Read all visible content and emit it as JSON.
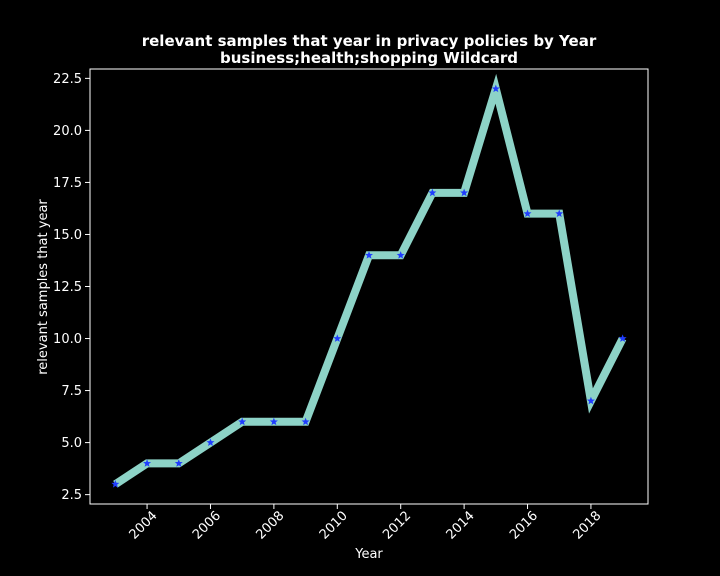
{
  "chart_data": {
    "type": "line",
    "title": "relevant samples that year in privacy policies by Year",
    "subtitle": "business;health;shopping Wildcard",
    "xlabel": "Year",
    "ylabel": "relevant samples that year",
    "x": [
      2003,
      2004,
      2005,
      2006,
      2007,
      2008,
      2009,
      2010,
      2011,
      2012,
      2013,
      2014,
      2015,
      2016,
      2017,
      2018,
      2019
    ],
    "series": [
      {
        "values": [
          3,
          4,
          4,
          5,
          6,
          6,
          6,
          10,
          14,
          14,
          17,
          17,
          22,
          16,
          16,
          7,
          10
        ]
      }
    ],
    "xlim": [
      2002.2,
      2019.8
    ],
    "ylim": [
      2.05,
      22.95
    ],
    "xticks": [
      2004,
      2006,
      2008,
      2010,
      2012,
      2014,
      2016,
      2018
    ],
    "xtick_labels": [
      "2004",
      "2006",
      "2008",
      "2010",
      "2012",
      "2014",
      "2016",
      "2018"
    ],
    "yticks": [
      2.5,
      5.0,
      7.5,
      10.0,
      12.5,
      15.0,
      17.5,
      20.0,
      22.5
    ],
    "ytick_labels": [
      "2.5",
      "5.0",
      "7.5",
      "10.0",
      "12.5",
      "15.0",
      "17.5",
      "20.0",
      "22.5"
    ],
    "grid": false,
    "colors": {
      "background": "#000000",
      "line": "#8dd3c7",
      "marker": "#1f3cff",
      "axes": "#ffffff",
      "text": "#ffffff"
    },
    "marker": "star"
  }
}
